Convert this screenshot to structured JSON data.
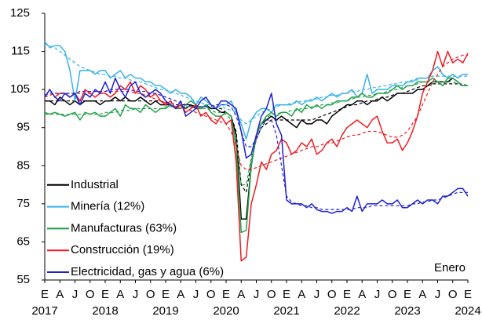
{
  "chart_data": {
    "type": "line",
    "categories": [
      "E",
      null,
      null,
      "A",
      null,
      null,
      "J",
      null,
      null,
      "O",
      null,
      null,
      "E",
      null,
      null,
      "A",
      null,
      null,
      "J",
      null,
      null,
      "O",
      null,
      null,
      "E",
      null,
      null,
      "A",
      null,
      null,
      "J",
      null,
      null,
      "O",
      null,
      null,
      "E",
      null,
      null,
      "A",
      null,
      null,
      "J",
      null,
      null,
      "O",
      null,
      null,
      "E",
      null,
      null,
      "A",
      null,
      null,
      "J",
      null,
      null,
      "O",
      null,
      null,
      "E",
      null,
      null,
      "A",
      null,
      null,
      "J",
      null,
      null,
      "O",
      null,
      null,
      "E",
      null,
      null,
      "A",
      null,
      null,
      "J",
      null,
      null,
      "O",
      null,
      null,
      "E"
    ],
    "category_years": [
      "2017",
      null,
      null,
      null,
      null,
      null,
      null,
      null,
      null,
      null,
      null,
      null,
      "2018",
      null,
      null,
      null,
      null,
      null,
      null,
      null,
      null,
      null,
      null,
      null,
      "2019",
      null,
      null,
      null,
      null,
      null,
      null,
      null,
      null,
      null,
      null,
      null,
      "2020",
      null,
      null,
      null,
      null,
      null,
      null,
      null,
      null,
      null,
      null,
      null,
      "2021",
      null,
      null,
      null,
      null,
      null,
      null,
      null,
      null,
      null,
      null,
      null,
      "2022",
      null,
      null,
      null,
      null,
      null,
      null,
      null,
      null,
      null,
      null,
      null,
      "2023",
      null,
      null,
      null,
      null,
      null,
      null,
      null,
      null,
      null,
      null,
      null,
      "2024"
    ],
    "series": [
      {
        "name": "Industrial",
        "color": "#000000",
        "values": [
          102,
          102,
          101,
          103,
          102,
          101,
          102,
          101,
          102,
          102,
          102,
          101,
          102,
          102,
          103,
          102,
          103,
          102,
          102,
          103,
          102,
          101,
          102,
          101,
          101,
          101,
          100,
          101,
          100,
          101,
          100,
          100,
          101,
          100,
          100,
          99,
          99,
          98,
          93,
          71,
          71,
          85,
          93,
          96,
          97,
          98,
          97,
          98,
          97,
          96,
          95,
          97,
          96,
          96,
          97,
          97,
          96,
          98,
          99,
          100,
          101,
          101,
          102,
          102,
          101,
          102,
          102,
          103,
          102,
          103,
          104,
          104,
          104,
          104,
          105,
          105,
          106,
          107,
          107,
          107,
          107,
          108,
          107,
          106,
          106
        ],
        "trend": [
          102,
          102,
          102,
          102,
          102,
          102,
          102,
          102,
          102,
          102,
          102,
          102,
          102,
          102,
          102,
          102,
          102,
          102,
          102,
          102,
          102,
          102,
          102,
          102,
          101.5,
          101.5,
          101,
          101,
          101,
          101,
          100.5,
          100.5,
          100.5,
          100,
          100,
          100,
          99,
          98,
          94,
          80,
          78,
          86,
          92,
          95,
          96,
          97,
          97,
          97,
          97,
          97,
          97,
          97,
          97,
          97,
          97.5,
          98,
          98.5,
          99,
          99.5,
          100,
          100.5,
          101,
          101,
          101.5,
          102,
          102,
          102.5,
          103,
          103,
          103.5,
          104,
          104,
          104.5,
          105,
          105.5,
          106,
          106,
          106.5,
          106.5,
          106.5,
          106.5,
          106.5,
          106.5,
          106,
          106
        ]
      },
      {
        "name": "Minería (12%)",
        "color": "#38b3e6",
        "values": [
          117.5,
          116,
          116.5,
          116.5,
          115,
          110,
          102,
          110,
          110,
          110,
          109,
          110,
          110,
          108,
          109,
          110,
          108,
          109,
          108,
          108,
          107,
          107,
          106,
          106,
          105,
          104,
          105,
          104,
          104,
          103,
          101,
          103,
          102,
          101,
          100,
          101,
          101,
          102,
          99,
          96,
          92,
          97,
          99,
          100,
          100,
          99,
          101,
          101,
          101,
          101,
          102,
          101,
          102,
          102,
          103,
          102,
          103,
          104,
          103,
          104,
          104,
          105,
          103,
          104,
          109,
          104,
          105,
          105,
          105,
          106,
          106,
          106,
          107,
          107,
          108,
          108,
          108,
          110,
          111,
          109,
          108,
          109,
          108,
          109,
          109
        ],
        "trend": [
          117,
          116.5,
          116,
          115,
          114,
          113,
          112,
          111,
          110.5,
          110,
          109.5,
          109,
          109,
          108.5,
          108.5,
          108,
          108,
          107.5,
          107,
          107,
          106.5,
          106,
          105.5,
          105,
          105,
          104.5,
          104,
          103.5,
          103,
          102.5,
          102,
          101.5,
          101,
          101,
          100.5,
          100.5,
          100,
          99.5,
          99,
          97,
          96,
          97,
          98,
          99,
          99.5,
          100,
          100.5,
          101,
          101,
          101.5,
          101.5,
          102,
          102,
          102.5,
          102.5,
          103,
          103,
          103.5,
          103.5,
          104,
          104,
          104.5,
          104.5,
          105,
          105,
          105.5,
          105.5,
          106,
          106,
          106.5,
          106.5,
          107,
          107,
          107.5,
          107.5,
          108,
          108,
          108.5,
          108.5,
          108.5,
          108.5,
          108.5,
          108.5,
          108.5,
          108.5
        ]
      },
      {
        "name": "Manufacturas (63%)",
        "color": "#22a24a",
        "values": [
          99,
          98.5,
          99,
          98.5,
          98,
          98.5,
          99,
          97,
          99,
          98.5,
          99,
          98,
          98,
          99,
          100,
          98,
          101,
          100,
          100,
          99,
          101,
          100,
          99,
          100,
          100,
          101,
          100,
          100,
          101,
          102,
          101,
          100,
          101,
          99,
          98,
          98,
          99,
          98,
          90,
          67.5,
          68,
          85,
          93,
          96,
          98,
          99,
          98,
          99,
          99,
          98,
          100,
          99,
          101,
          100,
          101,
          100,
          101,
          101,
          102,
          102,
          102,
          103,
          103,
          104,
          103,
          103,
          104,
          104,
          104,
          105,
          106,
          105,
          106,
          106,
          107,
          107,
          107,
          108,
          107,
          106,
          108,
          108,
          107,
          106,
          106
        ],
        "trend": [
          98.5,
          98.5,
          98.5,
          98.5,
          98.5,
          98.5,
          98.5,
          98.5,
          98.5,
          98.5,
          98.5,
          98.5,
          99,
          99,
          99,
          99.5,
          99.5,
          99.5,
          100,
          100,
          100,
          100,
          100,
          100,
          100.5,
          100.5,
          100.5,
          100.5,
          100.5,
          100.5,
          100,
          100,
          100,
          99.5,
          99,
          99,
          98.5,
          97,
          92,
          80,
          80,
          87,
          93,
          96,
          97.5,
          98.5,
          98.5,
          99,
          99,
          99.5,
          99.5,
          100,
          100,
          100.5,
          100.5,
          101,
          101,
          101.5,
          101.5,
          102,
          102,
          102.5,
          103,
          103,
          103.5,
          103.5,
          104,
          104,
          104.5,
          105,
          105,
          105.5,
          106,
          106,
          106.5,
          107,
          107,
          107,
          107,
          107,
          107,
          107,
          106.5,
          106.5,
          106
        ]
      },
      {
        "name": "Construcción (19%)",
        "color": "#ee1d23",
        "values": [
          103,
          105,
          103,
          104,
          104,
          103,
          104,
          102,
          105,
          104,
          103,
          104,
          104,
          103,
          104,
          106,
          105,
          107,
          104,
          106,
          105,
          103,
          104,
          102,
          101,
          102,
          100,
          101,
          99,
          100,
          101,
          98,
          99,
          97,
          96,
          98,
          96,
          97,
          86,
          60,
          61,
          75,
          80,
          86,
          84,
          88,
          89,
          92,
          91,
          88,
          89,
          91,
          90,
          92,
          88,
          89,
          91,
          92,
          90,
          93,
          95,
          96,
          97,
          96,
          95,
          97,
          98,
          94,
          91,
          91,
          92,
          89,
          91,
          94,
          98,
          104,
          107,
          110,
          115,
          111,
          115,
          112,
          113,
          112,
          114.5
        ],
        "trend": [
          103,
          103.5,
          104,
          104,
          104,
          104,
          104,
          104,
          104,
          104,
          104.5,
          104.5,
          104.5,
          104.5,
          104.5,
          104.5,
          104.5,
          104.5,
          104,
          104,
          103.5,
          103,
          102.5,
          102,
          101.5,
          101,
          100.5,
          100,
          100,
          99.5,
          99,
          98.5,
          98,
          97.5,
          97,
          96.5,
          96,
          94,
          90,
          85,
          84,
          84,
          84.5,
          85,
          85.5,
          86,
          86.5,
          87,
          87.5,
          88,
          88.5,
          89,
          89.5,
          90,
          90,
          90.5,
          91,
          91,
          91.5,
          92,
          92.5,
          93,
          93,
          93.5,
          94,
          94,
          94,
          93.5,
          93,
          92.5,
          92.5,
          93,
          94,
          96,
          98,
          101,
          104,
          107,
          109,
          111,
          112,
          113,
          113.5,
          114,
          114
        ]
      },
      {
        "name": "Electricidad, gas y agua (6%)",
        "color": "#1f22d2",
        "values": [
          103,
          105,
          103,
          102,
          104,
          103,
          104,
          101,
          104,
          103,
          105,
          104,
          107,
          104,
          108,
          105,
          103,
          106,
          107,
          104,
          103,
          104,
          105,
          104,
          102,
          101,
          100,
          102,
          98,
          99,
          100,
          102,
          103,
          101,
          100,
          102,
          102,
          101,
          100,
          94,
          87,
          88,
          93,
          98,
          100,
          104,
          96,
          93,
          76,
          75,
          75,
          75,
          74,
          75,
          73.5,
          73,
          73,
          72.5,
          73,
          73,
          74,
          73,
          77,
          73,
          75,
          75,
          75,
          76,
          75,
          75,
          76,
          74,
          74,
          75,
          76,
          75,
          76,
          76,
          75,
          77,
          77,
          78,
          79,
          79,
          77
        ],
        "trend": [
          103.5,
          104,
          104,
          104,
          104,
          104,
          104,
          104.5,
          104.5,
          104.5,
          104.5,
          104.5,
          104.5,
          105,
          105,
          105,
          105,
          105,
          104.5,
          104.5,
          104.5,
          104,
          104,
          103.5,
          103,
          102.5,
          102,
          101.5,
          101,
          100.5,
          100.5,
          100.5,
          100.5,
          100.5,
          101,
          101,
          101,
          100.5,
          98,
          94,
          90,
          90,
          92,
          95,
          97,
          97,
          93,
          85,
          77,
          75.5,
          75,
          74.5,
          74.5,
          74,
          74,
          73.5,
          73.5,
          73.5,
          73.5,
          73.5,
          73.5,
          73.5,
          74,
          74,
          74,
          74.5,
          74.5,
          74.5,
          74.5,
          74.5,
          74.5,
          74.5,
          74.5,
          75,
          75,
          75.5,
          75.5,
          76,
          76,
          76.5,
          77,
          77.5,
          78,
          78,
          78
        ]
      }
    ],
    "ylim": [
      55,
      125
    ],
    "yticks": [
      55,
      65,
      75,
      85,
      95,
      105,
      115,
      125
    ],
    "annotation": "Enero",
    "legend": "lower left"
  }
}
